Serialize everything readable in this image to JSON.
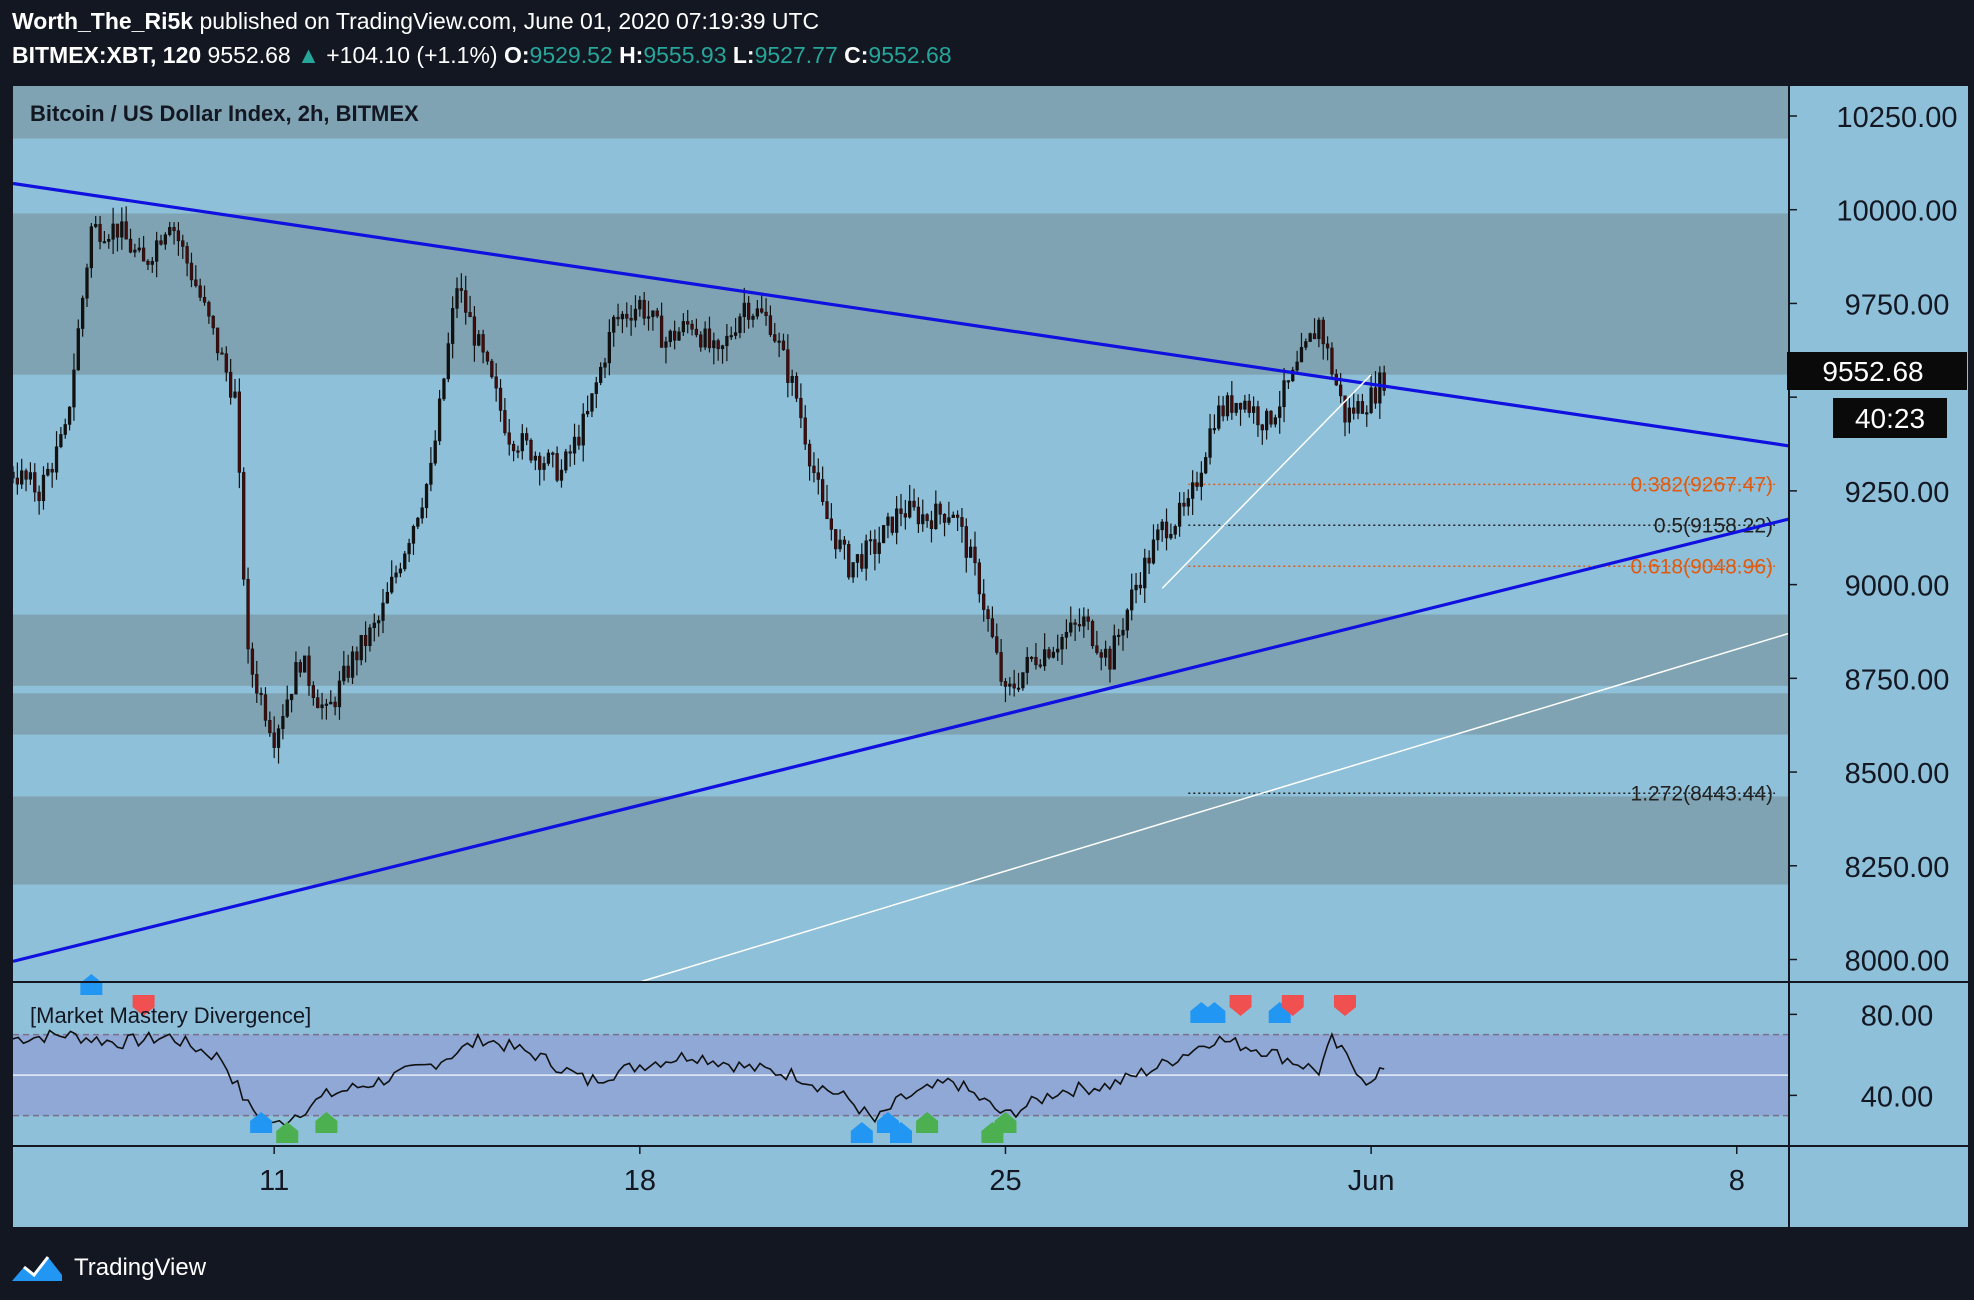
{
  "header": {
    "author": "Worth_The_Ri5k",
    "published_text": "published on TradingView.com, June 01, 2020 07:19:39 UTC",
    "symbol": "BITMEX:XBT, 120",
    "last": "9552.68",
    "change": "+104.10 (+1.1%)",
    "o_label": "O:",
    "o": "9529.52",
    "h_label": "H:",
    "h": "9555.93",
    "l_label": "L:",
    "l": "9527.77",
    "c_label": "C:",
    "c": "9552.68"
  },
  "chart_title": "Bitcoin / US Dollar Index, 2h, BITMEX",
  "indicator_title": "[Market Mastery Divergence]",
  "last_price_label": "9552.68",
  "countdown_label": "40:23",
  "footer": {
    "brand": "TradingView"
  },
  "colors": {
    "background": "#131722",
    "pane": "#8fc0d9",
    "zone": "#7fa3b2",
    "trendline": "#1010e0",
    "candle": "#4a0a0a",
    "fib_orange": "#e05a10",
    "fib_black": "#222222",
    "oscillator_band": "#8fa8d6",
    "up_marker": "#2196f3",
    "bull_marker": "#4caf50",
    "bear_marker": "#f05050"
  },
  "chart_data": {
    "type": "candlestick",
    "title": "Bitcoin / US Dollar Index, 2h, BITMEX",
    "price_axis": {
      "ticks": [
        10250,
        10000,
        9750,
        9500,
        9250,
        9000,
        8750,
        8500,
        8250,
        8000
      ],
      "tick_labels": [
        "10250.00",
        "10000.00",
        "9750.00",
        "",
        "9250.00",
        "9000.00",
        "8750.00",
        "8500.00",
        "8250.00",
        "8000.00"
      ],
      "range": [
        7940,
        10330
      ]
    },
    "time_axis": {
      "labels": [
        "11",
        "18",
        "25",
        "Jun",
        "8"
      ],
      "range": [
        "2020-05-06",
        "2020-06-09"
      ]
    },
    "price_path": [
      [
        "2020-05-06T00:00",
        9300
      ],
      [
        "2020-05-06T12:00",
        9250
      ],
      [
        "2020-05-07T00:00",
        9400
      ],
      [
        "2020-05-07T12:00",
        9950
      ],
      [
        "2020-05-08T00:00",
        9950
      ],
      [
        "2020-05-08T12:00",
        9850
      ],
      [
        "2020-05-09T00:00",
        9980
      ],
      [
        "2020-05-09T12:00",
        9800
      ],
      [
        "2020-05-10T00:00",
        9600
      ],
      [
        "2020-05-10T06:00",
        9500
      ],
      [
        "2020-05-10T12:00",
        8800
      ],
      [
        "2020-05-10T18:00",
        8700
      ],
      [
        "2020-05-11T00:00",
        8600
      ],
      [
        "2020-05-11T12:00",
        8800
      ],
      [
        "2020-05-12T00:00",
        8650
      ],
      [
        "2020-05-12T12:00",
        8800
      ],
      [
        "2020-05-13T00:00",
        8900
      ],
      [
        "2020-05-13T12:00",
        9100
      ],
      [
        "2020-05-14T00:00",
        9300
      ],
      [
        "2020-05-14T12:00",
        9800
      ],
      [
        "2020-05-15T00:00",
        9600
      ],
      [
        "2020-05-15T12:00",
        9400
      ],
      [
        "2020-05-16T00:00",
        9350
      ],
      [
        "2020-05-16T12:00",
        9300
      ],
      [
        "2020-05-17T00:00",
        9450
      ],
      [
        "2020-05-17T12:00",
        9700
      ],
      [
        "2020-05-18T00:00",
        9750
      ],
      [
        "2020-05-18T12:00",
        9650
      ],
      [
        "2020-05-19T00:00",
        9700
      ],
      [
        "2020-05-19T12:00",
        9600
      ],
      [
        "2020-05-20T00:00",
        9750
      ],
      [
        "2020-05-20T12:00",
        9700
      ],
      [
        "2020-05-21T00:00",
        9500
      ],
      [
        "2020-05-21T12:00",
        9200
      ],
      [
        "2020-05-22T00:00",
        9050
      ],
      [
        "2020-05-22T12:00",
        9100
      ],
      [
        "2020-05-23T00:00",
        9200
      ],
      [
        "2020-05-23T12:00",
        9180
      ],
      [
        "2020-05-24T00:00",
        9200
      ],
      [
        "2020-05-24T12:00",
        9000
      ],
      [
        "2020-05-25T00:00",
        8700
      ],
      [
        "2020-05-25T12:00",
        8800
      ],
      [
        "2020-05-26T00:00",
        8850
      ],
      [
        "2020-05-26T12:00",
        8900
      ],
      [
        "2020-05-27T00:00",
        8800
      ],
      [
        "2020-05-27T12:00",
        9000
      ],
      [
        "2020-05-28T00:00",
        9150
      ],
      [
        "2020-05-28T12:00",
        9200
      ],
      [
        "2020-05-29T00:00",
        9450
      ],
      [
        "2020-05-29T12:00",
        9500
      ],
      [
        "2020-05-30T00:00",
        9430
      ],
      [
        "2020-05-30T12:00",
        9550
      ],
      [
        "2020-05-31T00:00",
        9700
      ],
      [
        "2020-05-31T12:00",
        9450
      ],
      [
        "2020-06-01T00:00",
        9500
      ],
      [
        "2020-06-01T06:00",
        9552.68
      ]
    ],
    "trendlines": [
      {
        "from": [
          "2020-05-06T00:00",
          10070
        ],
        "to": [
          "2020-06-09T00:00",
          9370
        ]
      },
      {
        "from": [
          "2020-05-06T00:00",
          7995
        ],
        "to": [
          "2020-06-09T00:00",
          9175
        ]
      }
    ],
    "fibonacci": [
      {
        "ratio": "0.382",
        "label": "0.382(9267.47)",
        "price": 9267.47
      },
      {
        "ratio": "0.5",
        "label": "0.5(9158.22)",
        "price": 9158.22
      },
      {
        "ratio": "0.618",
        "label": "0.618(9048.96)",
        "price": 9048.96
      },
      {
        "ratio": "1.272",
        "label": "1.272(8443.44)",
        "price": 8443.44
      }
    ],
    "oscillator": {
      "name": "[Market Mastery Divergence]",
      "ticks": [
        80,
        40
      ],
      "tick_labels": [
        "80.00",
        "40.00"
      ],
      "range": [
        15,
        95
      ],
      "bands": [
        70,
        50,
        30
      ],
      "values": [
        [
          "2020-05-06T00:00",
          68
        ],
        [
          "2020-05-07T00:00",
          70
        ],
        [
          "2020-05-08T00:00",
          66
        ],
        [
          "2020-05-09T00:00",
          69
        ],
        [
          "2020-05-10T00:00",
          58
        ],
        [
          "2020-05-10T12:00",
          35
        ],
        [
          "2020-05-11T00:00",
          25
        ],
        [
          "2020-05-11T12:00",
          32
        ],
        [
          "2020-05-12T00:00",
          40
        ],
        [
          "2020-05-13T00:00",
          47
        ],
        [
          "2020-05-14T00:00",
          55
        ],
        [
          "2020-05-15T00:00",
          68
        ],
        [
          "2020-05-16T00:00",
          60
        ],
        [
          "2020-05-17T00:00",
          47
        ],
        [
          "2020-05-18T00:00",
          55
        ],
        [
          "2020-05-19T00:00",
          60
        ],
        [
          "2020-05-20T00:00",
          54
        ],
        [
          "2020-05-21T00:00",
          50
        ],
        [
          "2020-05-22T00:00",
          38
        ],
        [
          "2020-05-22T12:00",
          27
        ],
        [
          "2020-05-23T00:00",
          38
        ],
        [
          "2020-05-24T00:00",
          47
        ],
        [
          "2020-05-25T00:00",
          30
        ],
        [
          "2020-05-26T00:00",
          42
        ],
        [
          "2020-05-27T00:00",
          45
        ],
        [
          "2020-05-28T00:00",
          55
        ],
        [
          "2020-05-29T00:00",
          68
        ],
        [
          "2020-05-30T00:00",
          62
        ],
        [
          "2020-05-31T00:00",
          52
        ],
        [
          "2020-05-31T06:00",
          67
        ],
        [
          "2020-06-01T00:00",
          45
        ],
        [
          "2020-06-01T06:00",
          53
        ]
      ],
      "markers": [
        [
          "2020-05-07T12:00",
          "up"
        ],
        [
          "2020-05-08T12:00",
          "bear"
        ],
        [
          "2020-05-10T18:00",
          "up"
        ],
        [
          "2020-05-11T06:00",
          "bull"
        ],
        [
          "2020-05-12T00:00",
          "bull"
        ],
        [
          "2020-05-22T06:00",
          "up"
        ],
        [
          "2020-05-22T18:00",
          "up"
        ],
        [
          "2020-05-23T00:00",
          "up"
        ],
        [
          "2020-05-23T12:00",
          "bull"
        ],
        [
          "2020-05-24T18:00",
          "bull"
        ],
        [
          "2020-05-25T00:00",
          "bull"
        ],
        [
          "2020-05-28T18:00",
          "up"
        ],
        [
          "2020-05-29T00:00",
          "up"
        ],
        [
          "2020-05-29T12:00",
          "bear"
        ],
        [
          "2020-05-30T06:00",
          "up"
        ],
        [
          "2020-05-30T12:00",
          "bear"
        ],
        [
          "2020-05-31T12:00",
          "bear"
        ]
      ]
    }
  }
}
